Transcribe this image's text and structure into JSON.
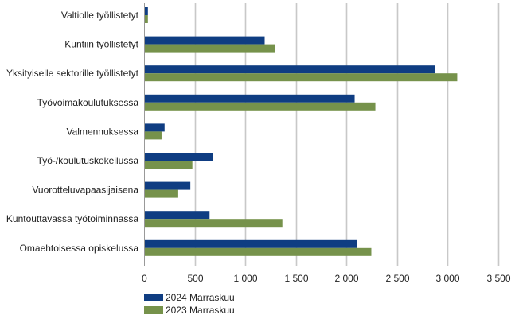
{
  "chart_data": {
    "type": "bar",
    "orientation": "horizontal",
    "categories": [
      "Valtiolle työllistetyt",
      "Kuntiin työllistetyt",
      "Yksityiselle sektorille työllistetyt",
      "Työvoimakoulutuksessa",
      "Valmennuksessa",
      "Työ-/koulutuskokeilussa",
      "Vuorotteluvapaasijaisena",
      "Kuntouttavassa työtoiminnassa",
      "Omaehtoisessa opiskelussa"
    ],
    "series": [
      {
        "name": "2024 Marraskuu",
        "color": "#0f3d82",
        "values": [
          30,
          1185,
          2870,
          2075,
          195,
          670,
          450,
          640,
          2100
        ]
      },
      {
        "name": "2023 Marraskuu",
        "color": "#76924b",
        "values": [
          30,
          1285,
          3090,
          2280,
          165,
          470,
          330,
          1360,
          2240
        ]
      }
    ],
    "xlim": [
      0,
      3500
    ],
    "xticks": [
      0,
      500,
      1000,
      1500,
      2000,
      2500,
      3000,
      3500
    ],
    "xtick_labels": [
      "0",
      "500",
      "1 000",
      "1 500",
      "2 000",
      "2 500",
      "3 000",
      "3 500"
    ],
    "grid": "vertical",
    "legend_position": "bottom-left"
  }
}
